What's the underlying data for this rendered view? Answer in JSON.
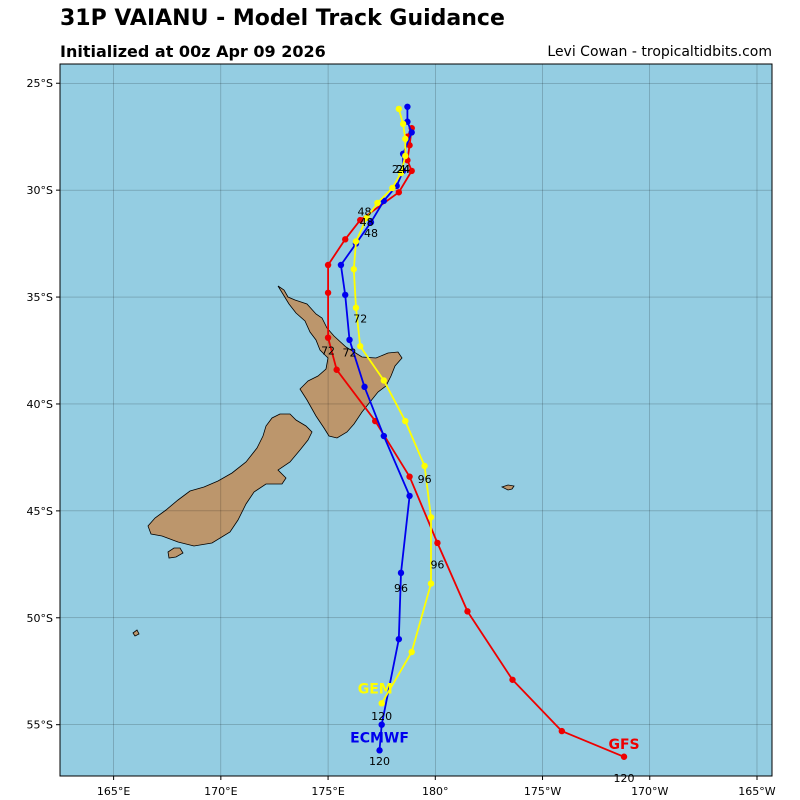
{
  "header": {
    "title": "31P VAIANU - Model Track Guidance",
    "subtitle": "Initialized at 00z Apr 09 2026",
    "credit": "Levi Cowan - tropicaltidbits.com"
  },
  "colors": {
    "ocean": "#94CDE2",
    "land": "#BC966C",
    "gfs": "#EE0000",
    "ecmwf": "#0000EE",
    "gem": "#FFFF00"
  },
  "chart_data": {
    "type": "map-track",
    "lon_range": [
      162.5,
      195.7
    ],
    "lat_range": [
      -57.4,
      -24.1
    ],
    "lon_ticks": [
      {
        "value": 165,
        "label": "165°E"
      },
      {
        "value": 170,
        "label": "170°E"
      },
      {
        "value": 175,
        "label": "175°E"
      },
      {
        "value": 180,
        "label": "180°"
      },
      {
        "value": 185,
        "label": "175°W"
      },
      {
        "value": 190,
        "label": "170°W"
      },
      {
        "value": 195,
        "label": "165°W"
      }
    ],
    "lat_ticks": [
      {
        "value": -25,
        "label": "25°S"
      },
      {
        "value": -30,
        "label": "30°S"
      },
      {
        "value": -35,
        "label": "35°S"
      },
      {
        "value": -40,
        "label": "40°S"
      },
      {
        "value": -45,
        "label": "45°S"
      },
      {
        "value": -50,
        "label": "50°S"
      },
      {
        "value": -55,
        "label": "55°S"
      }
    ],
    "grid": true,
    "series": [
      {
        "name": "GFS",
        "color": "#EE0000",
        "points": [
          [
            178.7,
            -27.5
          ],
          [
            178.9,
            -27.1
          ],
          [
            178.8,
            -27.9
          ],
          [
            178.7,
            -28.6
          ],
          [
            178.9,
            -29.1
          ],
          [
            178.3,
            -30.1
          ],
          [
            176.5,
            -31.4
          ],
          [
            175.8,
            -32.3
          ],
          [
            175.0,
            -33.5
          ],
          [
            175.0,
            -34.8
          ],
          [
            175.0,
            -36.9
          ],
          [
            175.4,
            -38.4
          ],
          [
            177.2,
            -40.8
          ],
          [
            178.8,
            -43.4
          ],
          [
            180.1,
            -46.5
          ],
          [
            181.5,
            -49.7
          ],
          [
            183.6,
            -52.9
          ],
          [
            185.9,
            -55.3
          ],
          [
            188.8,
            -56.5
          ]
        ],
        "hour_labels": [
          {
            "text": "24",
            "lon": 178.5,
            "lat": -29.0
          },
          {
            "text": "48",
            "lon": 176.8,
            "lat": -31.5
          },
          {
            "text": "72",
            "lon": 175.0,
            "lat": -37.5
          },
          {
            "text": "96",
            "lon": 180.1,
            "lat": -47.5
          },
          {
            "text": "120",
            "lon": 188.8,
            "lat": -57.5
          }
        ],
        "name_label": {
          "lon": 188.8,
          "lat": -55.9
        }
      },
      {
        "name": "ECMWF",
        "color": "#0000EE",
        "points": [
          [
            178.7,
            -26.1
          ],
          [
            178.7,
            -26.8
          ],
          [
            178.9,
            -27.3
          ],
          [
            178.5,
            -28.3
          ],
          [
            178.5,
            -29.1
          ],
          [
            178.2,
            -29.8
          ],
          [
            177.6,
            -30.5
          ],
          [
            177.0,
            -31.5
          ],
          [
            176.3,
            -32.5
          ],
          [
            175.6,
            -33.5
          ],
          [
            175.8,
            -34.9
          ],
          [
            176.0,
            -37.0
          ],
          [
            176.7,
            -39.2
          ],
          [
            177.6,
            -41.5
          ],
          [
            178.8,
            -44.3
          ],
          [
            178.4,
            -47.9
          ],
          [
            178.3,
            -51.0
          ],
          [
            177.5,
            -55.0
          ],
          [
            177.4,
            -56.2
          ]
        ],
        "hour_labels": [
          {
            "text": "24",
            "lon": 178.5,
            "lat": -29.0
          },
          {
            "text": "48",
            "lon": 177.0,
            "lat": -32.0
          },
          {
            "text": "72",
            "lon": 176.0,
            "lat": -37.6
          },
          {
            "text": "96",
            "lon": 178.4,
            "lat": -48.6
          },
          {
            "text": "120",
            "lon": 177.4,
            "lat": -56.7
          }
        ],
        "name_label": {
          "lon": 177.4,
          "lat": -55.6
        }
      },
      {
        "name": "GEM",
        "color": "#FFFF00",
        "points": [
          [
            178.3,
            -26.2
          ],
          [
            178.5,
            -26.9
          ],
          [
            178.6,
            -27.6
          ],
          [
            178.6,
            -28.4
          ],
          [
            178.4,
            -29.2
          ],
          [
            178.0,
            -29.9
          ],
          [
            177.3,
            -30.6
          ],
          [
            176.8,
            -31.3
          ],
          [
            176.3,
            -32.4
          ],
          [
            176.2,
            -33.7
          ],
          [
            176.3,
            -35.5
          ],
          [
            176.5,
            -37.3
          ],
          [
            177.6,
            -38.9
          ],
          [
            178.6,
            -40.8
          ],
          [
            179.5,
            -42.9
          ],
          [
            179.8,
            -45.3
          ],
          [
            179.8,
            -48.4
          ],
          [
            178.9,
            -51.6
          ],
          [
            177.5,
            -54.0
          ]
        ],
        "hour_labels": [
          {
            "text": "24",
            "lon": 178.3,
            "lat": -29.0
          },
          {
            "text": "48",
            "lon": 176.7,
            "lat": -31.0
          },
          {
            "text": "72",
            "lon": 176.5,
            "lat": -36.0
          },
          {
            "text": "96",
            "lon": 179.5,
            "lat": -43.5
          },
          {
            "text": "120",
            "lon": 177.5,
            "lat": -54.6
          }
        ],
        "name_label": {
          "lon": 177.2,
          "lat": -53.3
        }
      }
    ]
  }
}
